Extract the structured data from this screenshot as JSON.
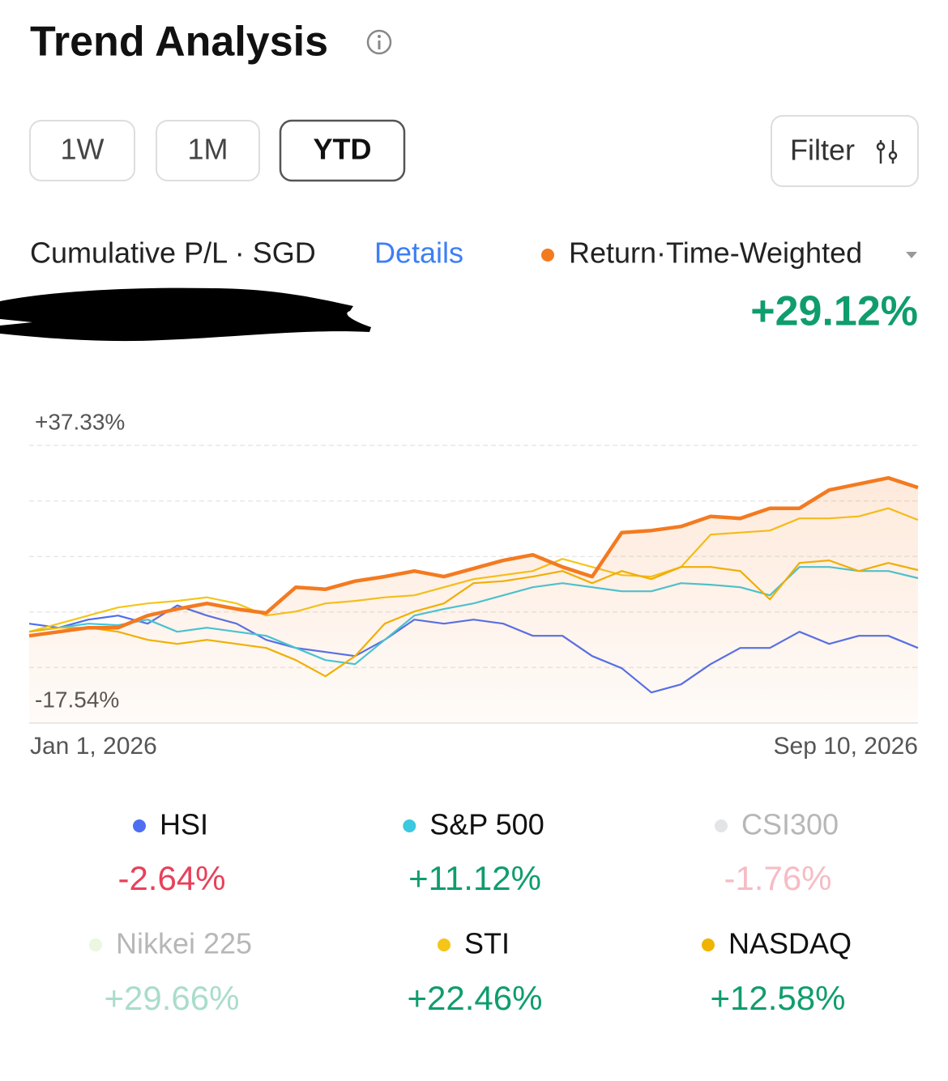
{
  "header": {
    "title": "Trend Analysis"
  },
  "periods": {
    "options": [
      "1W",
      "1M",
      "YTD"
    ],
    "selected_index": 2
  },
  "filter": "Filter",
  "summary": {
    "label": "Cumulative P/L · SGD",
    "details": "Details"
  },
  "chart_data": {
    "type": "line",
    "ylim": [
      -17.54,
      37.33
    ],
    "yticks": [
      {
        "value": 37.33,
        "label": "+37.33%"
      },
      {
        "value": 26.36,
        "label": null
      },
      {
        "value": 15.38,
        "label": null
      },
      {
        "value": 4.41,
        "label": null
      },
      {
        "value": -6.57,
        "label": null
      },
      {
        "value": -17.54,
        "label": "-17.54%"
      }
    ],
    "x_labels": [
      "Jan 1, 2026",
      "Sep 10, 2026"
    ],
    "series": [
      {
        "name": "Return·Time-Weighted",
        "color": "#f47a20",
        "visible": true,
        "return": 29.12,
        "return_label": "+29.12%",
        "values": [
          -0.3,
          0.5,
          1.3,
          1.3,
          3.7,
          5.0,
          6.1,
          5.0,
          4.2,
          9.3,
          8.9,
          10.5,
          11.4,
          12.5,
          11.4,
          13.0,
          14.6,
          15.7,
          13.3,
          11.4,
          20.1,
          20.5,
          21.3,
          23.3,
          22.9,
          24.9,
          24.9,
          28.5,
          29.7,
          30.9,
          29.0
        ]
      },
      {
        "name": "HSI",
        "color": "#4d6ef0",
        "visible": true,
        "return": -2.64,
        "return_label": "-2.64%",
        "values": [
          2.1,
          1.3,
          2.9,
          3.7,
          2.1,
          5.7,
          3.7,
          2.1,
          -1.1,
          -2.7,
          -3.5,
          -4.3,
          -1.1,
          2.9,
          2.1,
          2.9,
          2.1,
          -0.3,
          -0.3,
          -4.3,
          -6.7,
          -11.5,
          -9.9,
          -5.9,
          -2.7,
          -2.7,
          0.5,
          -1.9,
          -0.3,
          -0.3,
          -2.7
        ]
      },
      {
        "name": "S&P 500",
        "color": "#3cc8de",
        "visible": true,
        "return": 11.12,
        "return_label": "+11.12%",
        "values": [
          0.5,
          1.3,
          2.1,
          1.8,
          2.9,
          0.5,
          1.3,
          0.5,
          -0.3,
          -2.7,
          -5.1,
          -5.9,
          -1.1,
          3.7,
          5.0,
          6.1,
          7.7,
          9.3,
          10.1,
          9.3,
          8.5,
          8.5,
          10.1,
          9.8,
          9.3,
          7.7,
          13.3,
          13.3,
          12.5,
          12.5,
          11.1
        ]
      },
      {
        "name": "CSI300",
        "color": "#b0b3b9",
        "visible": false,
        "return": -1.76,
        "return_label": "-1.76%"
      },
      {
        "name": "Nikkei 225",
        "color": "#c9e8a8",
        "visible": false,
        "return": 29.66,
        "return_label": "+29.66%"
      },
      {
        "name": "STI",
        "color": "#f5c518",
        "visible": true,
        "return": 22.46,
        "return_label": "+22.46%",
        "values": [
          0.5,
          2.1,
          3.7,
          5.3,
          6.1,
          6.6,
          7.3,
          6.1,
          3.7,
          4.5,
          6.1,
          6.6,
          7.3,
          7.7,
          9.3,
          10.9,
          11.7,
          12.5,
          14.9,
          13.3,
          11.7,
          11.4,
          13.3,
          19.7,
          20.1,
          20.5,
          22.9,
          22.9,
          23.3,
          24.9,
          22.6
        ]
      },
      {
        "name": "NASDAQ",
        "color": "#f0b400",
        "visible": true,
        "return": 12.58,
        "return_label": "+12.58%",
        "values": [
          0.5,
          1.3,
          1.3,
          0.5,
          -1.1,
          -1.9,
          -1.1,
          -1.9,
          -2.7,
          -5.1,
          -8.3,
          -4.3,
          2.1,
          4.5,
          6.1,
          10.1,
          10.5,
          11.4,
          12.5,
          10.1,
          12.5,
          10.9,
          13.3,
          13.3,
          12.5,
          6.9,
          14.1,
          14.6,
          12.5,
          14.1,
          12.7
        ]
      }
    ]
  }
}
